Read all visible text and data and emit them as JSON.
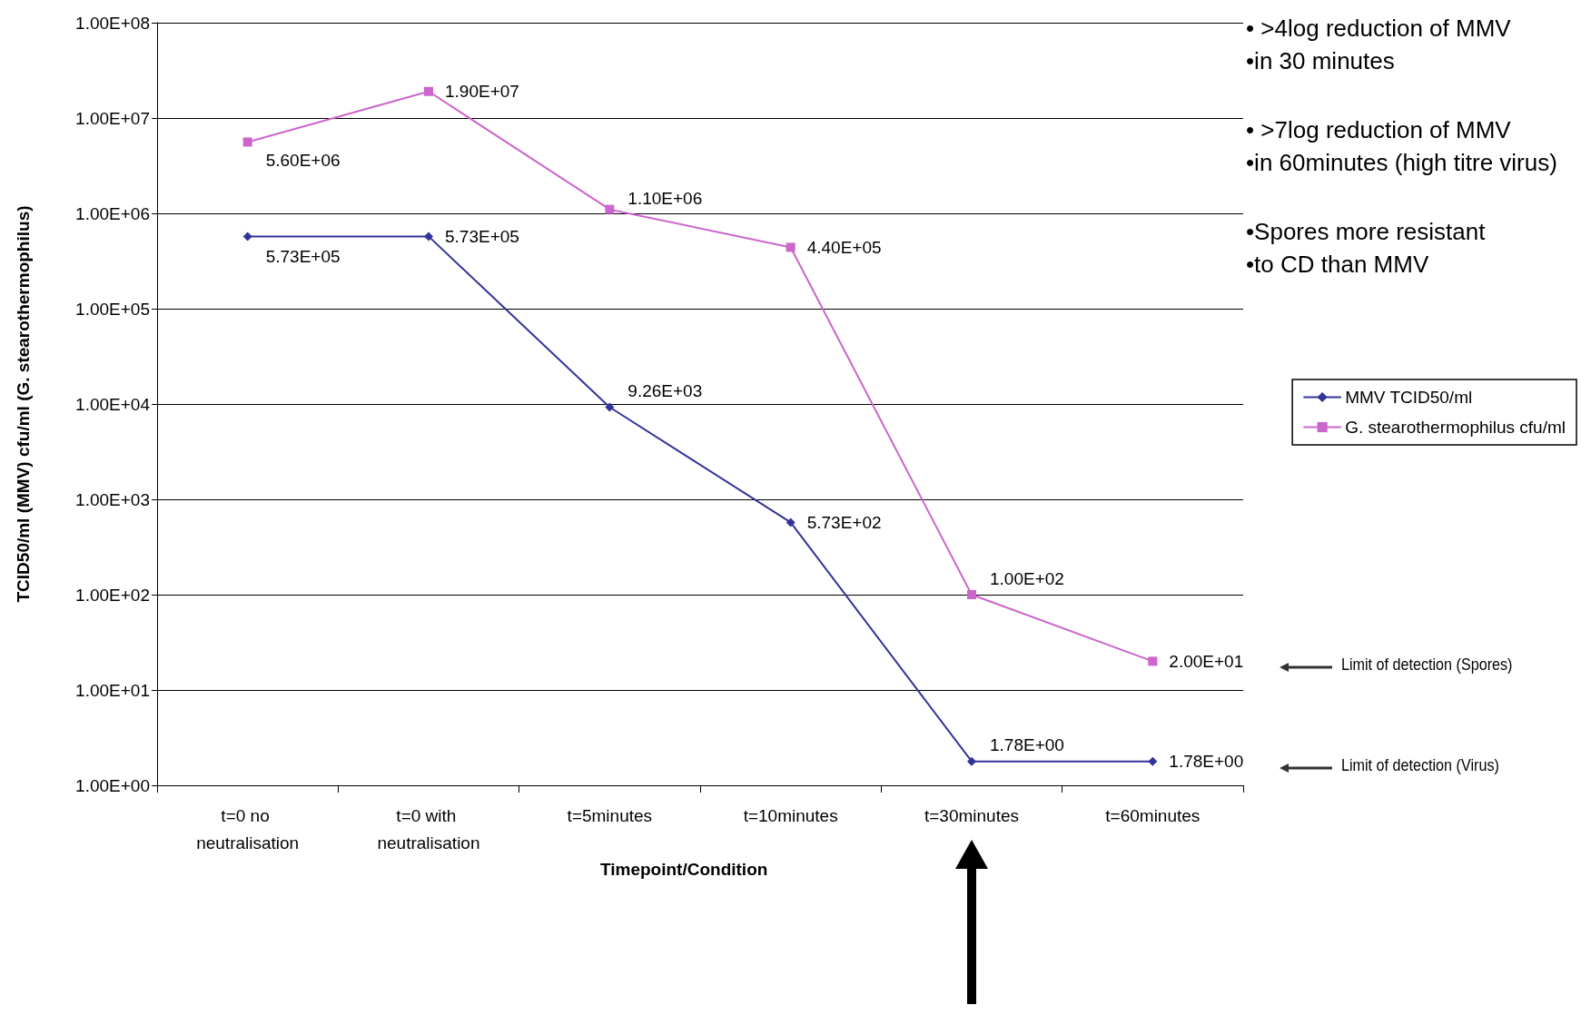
{
  "chart_data": {
    "type": "line",
    "xlabel": "Timepoint/Condition",
    "ylabel": "TCID50/ml (MMV) cfu/ml (G. stearothermophilus)",
    "categories": [
      "t=0 no neutralisation",
      "t=0 with neutralisation",
      "t=5minutes",
      "t=10minutes",
      "t=30minutes",
      "t=60minutes"
    ],
    "series": [
      {
        "name": "MMV TCID50/ml",
        "color": "#333399",
        "marker": "diamond",
        "values": [
          573000,
          573000,
          9260,
          573,
          1.78,
          1.78
        ],
        "value_labels": [
          "5.73E+05",
          "5.73E+05",
          "9.26E+03",
          "5.73E+02",
          "1.78E+00",
          "1.78E+00"
        ]
      },
      {
        "name": "G. stearothermophilus cfu/ml",
        "color": "#cc66cc",
        "marker": "square",
        "values": [
          5600000,
          19000000,
          1100000,
          440000,
          100,
          20
        ],
        "value_labels": [
          "5.60E+06",
          "1.90E+07",
          "1.10E+06",
          "4.40E+05",
          "1.00E+02",
          "2.00E+01"
        ]
      }
    ],
    "log": "y",
    "ylim": [
      1,
      100000000
    ],
    "yticks": [
      {
        "value": 1,
        "label": "1.00E+00"
      },
      {
        "value": 10,
        "label": "1.00E+01"
      },
      {
        "value": 100,
        "label": "1.00E+02"
      },
      {
        "value": 1000,
        "label": "1.00E+03"
      },
      {
        "value": 10000,
        "label": "1.00E+04"
      },
      {
        "value": 100000,
        "label": "1.00E+05"
      },
      {
        "value": 1000000,
        "label": "1.00E+06"
      },
      {
        "value": 10000000,
        "label": "1.00E+07"
      },
      {
        "value": 100000000,
        "label": "1.00E+08"
      }
    ],
    "grid": "y",
    "legend": "right",
    "line_style": "solid",
    "annotations": [
      "• >4log reduction of MMV\n•in 30 minutes",
      "• >7log reduction of MMV\n•in 60minutes (high titre virus)",
      "•Spores more resistant\n•to CD than MMV",
      "Limit of detection (Spores)",
      "Limit of detection (Virus)"
    ]
  }
}
